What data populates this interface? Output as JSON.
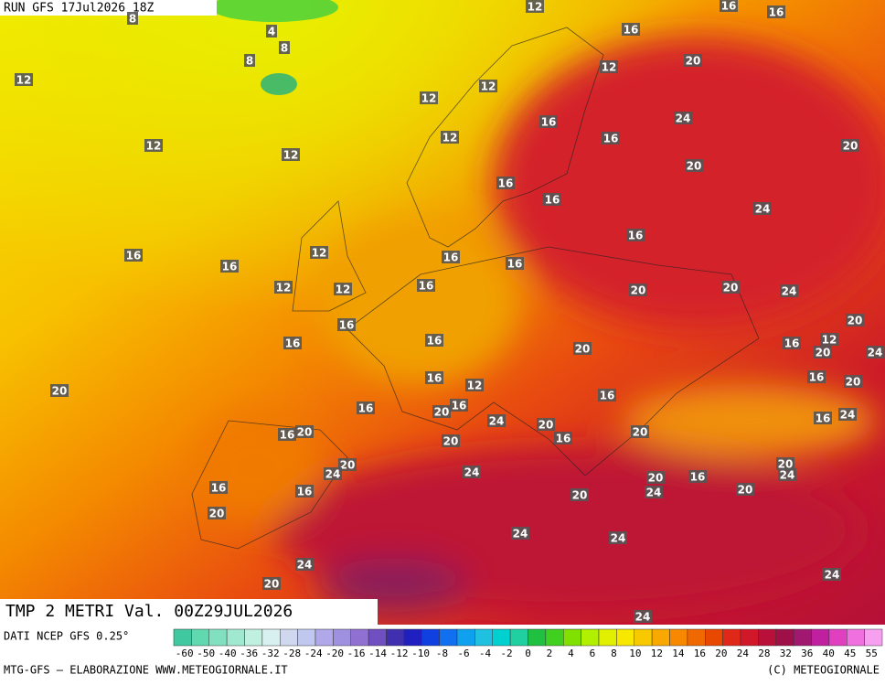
{
  "header": {
    "run": "RUN GFS 17Jul2026 18Z",
    "title": "TMP 2 METRI Val. 00Z29JUL2026"
  },
  "map_labels": [
    "12",
    "16",
    "16",
    "8",
    "4",
    "8",
    "8",
    "16",
    "12",
    "20",
    "12",
    "12",
    "12",
    "24",
    "16",
    "12",
    "12",
    "12",
    "16",
    "20",
    "20",
    "16",
    "16",
    "24",
    "16",
    "16",
    "16",
    "12",
    "16",
    "16",
    "12",
    "12",
    "16",
    "20",
    "20",
    "24",
    "16",
    "20",
    "16",
    "16",
    "20",
    "16",
    "12",
    "20",
    "24",
    "16",
    "12",
    "16",
    "20",
    "20",
    "16",
    "16",
    "20",
    "16",
    "16",
    "24",
    "24",
    "20",
    "16",
    "20",
    "16",
    "20",
    "20",
    "20",
    "24",
    "24",
    "20",
    "24",
    "16",
    "16",
    "20",
    "16",
    "24",
    "20",
    "20",
    "20",
    "24",
    "24",
    "24",
    "20",
    "24",
    "24"
  ],
  "footer": {
    "source": "DATI NCEP GFS 0.25°",
    "credit": "MTG-GFS — ELABORAZIONE WWW.METEOGIORNALE.IT",
    "copyright": "(C) METEOGIORNALE"
  },
  "colorbar_labels": [
    "-60",
    "-50",
    "-40",
    "-36",
    "-32",
    "-28",
    "-24",
    "-20",
    "-16",
    "-14",
    "-12",
    "-10",
    "-8",
    "-6",
    "-4",
    "-2",
    "0",
    "2",
    "4",
    "6",
    "8",
    "10",
    "12",
    "14",
    "16",
    "20",
    "24",
    "28",
    "32",
    "36",
    "40",
    "45",
    "55"
  ]
}
